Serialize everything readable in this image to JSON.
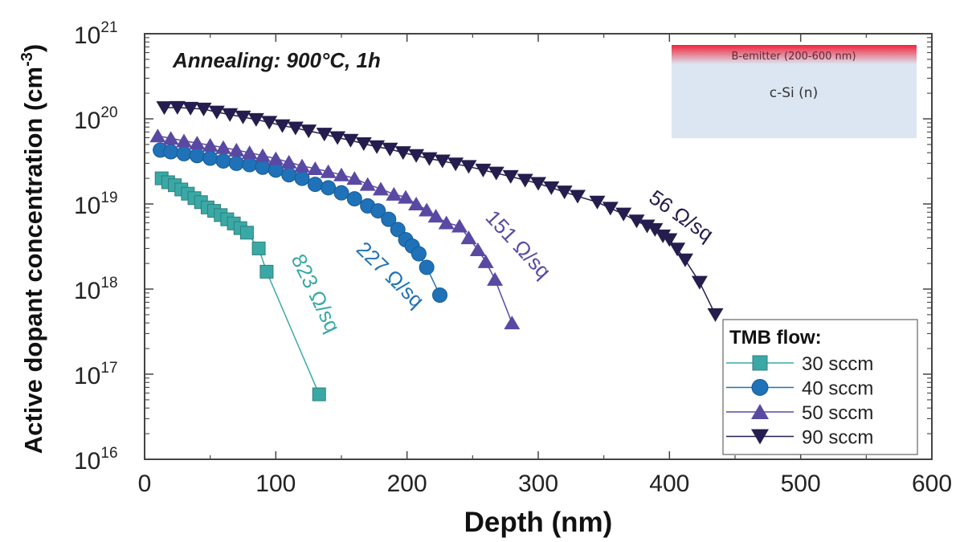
{
  "chart_data": {
    "type": "scatter",
    "title": "",
    "xlabel": "Depth (nm)",
    "ylabel": "Active dopant concentration (cm",
    "ylabel_unit_exponent": "-3",
    "ylabel_close": ")",
    "xlim": [
      0,
      600
    ],
    "ylim": [
      1e+16,
      1e+21
    ],
    "yscale": "log",
    "grid": false,
    "x_ticks": [
      "0",
      "100",
      "200",
      "300",
      "400",
      "500",
      "600"
    ],
    "y_ticks": [
      {
        "base": "10",
        "exp": "16"
      },
      {
        "base": "10",
        "exp": "17"
      },
      {
        "base": "10",
        "exp": "18"
      },
      {
        "base": "10",
        "exp": "19"
      },
      {
        "base": "10",
        "exp": "20"
      },
      {
        "base": "10",
        "exp": "21"
      }
    ],
    "annotation": "Annealing: 900°C, 1h",
    "inset": {
      "top_layer": "B-emitter (200-600 nm)",
      "substrate": "c-Si (n)"
    },
    "legend": {
      "title": "TMB flow:",
      "placement": "bottom-right"
    },
    "series": [
      {
        "name": "30 sccm",
        "marker": "square",
        "color": "#3aa9a6",
        "label": "823 Ω/sq",
        "x": [
          13,
          18,
          23,
          28,
          33,
          38,
          43,
          48,
          53,
          58,
          63,
          68,
          73,
          78,
          87,
          93,
          133
        ],
        "y": [
          2e+19,
          1.8e+19,
          1.66e+19,
          1.48e+19,
          1.32e+19,
          1.17e+19,
          1.05e+19,
          9.1e+18,
          8.3e+18,
          7.4e+18,
          6.6e+18,
          5.9e+18,
          5.2e+18,
          4.6e+18,
          3e+18,
          1.6e+18,
          5.8e+16
        ]
      },
      {
        "name": "40 sccm",
        "marker": "circle",
        "color": "#1f72b8",
        "label": "227 Ω/sq",
        "x": [
          12,
          20,
          30,
          40,
          50,
          60,
          70,
          80,
          90,
          100,
          110,
          120,
          130,
          140,
          150,
          160,
          170,
          178,
          186,
          193,
          199,
          204,
          209,
          215,
          225
        ],
        "y": [
          4.3e+19,
          4.1e+19,
          3.9e+19,
          3.7e+19,
          3.45e+19,
          3.2e+19,
          3e+19,
          2.9e+19,
          2.7e+19,
          2.5e+19,
          2.2e+19,
          2e+19,
          1.7e+19,
          1.55e+19,
          1.35e+19,
          1.15e+19,
          9.5e+18,
          8.3e+18,
          6.6e+18,
          5e+18,
          3.8e+18,
          3.2e+18,
          2.6e+18,
          1.8e+18,
          8.5e+17
        ]
      },
      {
        "name": "50 sccm",
        "marker": "triangle-up",
        "color": "#5a49a3",
        "label": "151 Ω/sq",
        "x": [
          10,
          20,
          30,
          40,
          50,
          60,
          70,
          80,
          90,
          100,
          110,
          120,
          130,
          140,
          150,
          160,
          170,
          180,
          190,
          199,
          207,
          215,
          222,
          230,
          240,
          247,
          254,
          260,
          267,
          280
        ],
        "y": [
          6.3e+19,
          5.9e+19,
          5.5e+19,
          5.2e+19,
          4.9e+19,
          4.6e+19,
          4.3e+19,
          4e+19,
          3.7e+19,
          3.4e+19,
          3.1e+19,
          2.8e+19,
          2.6e+19,
          2.4e+19,
          2.2e+19,
          2e+19,
          1.7e+19,
          1.5e+19,
          1.3e+19,
          1.2e+19,
          1e+19,
          8.5e+18,
          7.2e+18,
          6e+18,
          5.5e+18,
          4e+18,
          2.9e+18,
          2.1e+18,
          1.3e+18,
          4e+17
        ]
      },
      {
        "name": "90 sccm",
        "marker": "triangle-down",
        "color": "#251d4d",
        "label": "56 Ω/sq",
        "x": [
          15,
          25,
          35,
          45,
          55,
          65,
          75,
          85,
          95,
          105,
          115,
          125,
          137,
          147,
          157,
          167,
          177,
          187,
          197,
          207,
          217,
          227,
          237,
          247,
          258,
          268,
          279,
          290,
          300,
          310,
          320,
          330,
          345,
          355,
          365,
          375,
          383,
          389,
          395,
          400,
          406,
          412,
          423,
          435
        ],
        "y": [
          1.35e+20,
          1.36e+20,
          1.33e+20,
          1.3e+20,
          1.2e+20,
          1.12e+20,
          1.05e+20,
          9.8e+19,
          9.1e+19,
          8.3e+19,
          7.8e+19,
          7.2e+19,
          6.6e+19,
          6e+19,
          5.6e+19,
          5.1e+19,
          4.7e+19,
          4.4e+19,
          4e+19,
          3.7e+19,
          3.4e+19,
          3.2e+19,
          2.95e+19,
          2.75e+19,
          2.5e+19,
          2.3e+19,
          2.1e+19,
          1.9e+19,
          1.74e+19,
          1.55e+19,
          1.38e+19,
          1.23e+19,
          1.05e+19,
          8.9e+18,
          7.6e+18,
          6.3e+18,
          5.5e+18,
          5e+18,
          4.2e+18,
          3.8e+18,
          2.95e+18,
          2.2e+18,
          1.2e+18,
          5e+17
        ]
      }
    ]
  }
}
